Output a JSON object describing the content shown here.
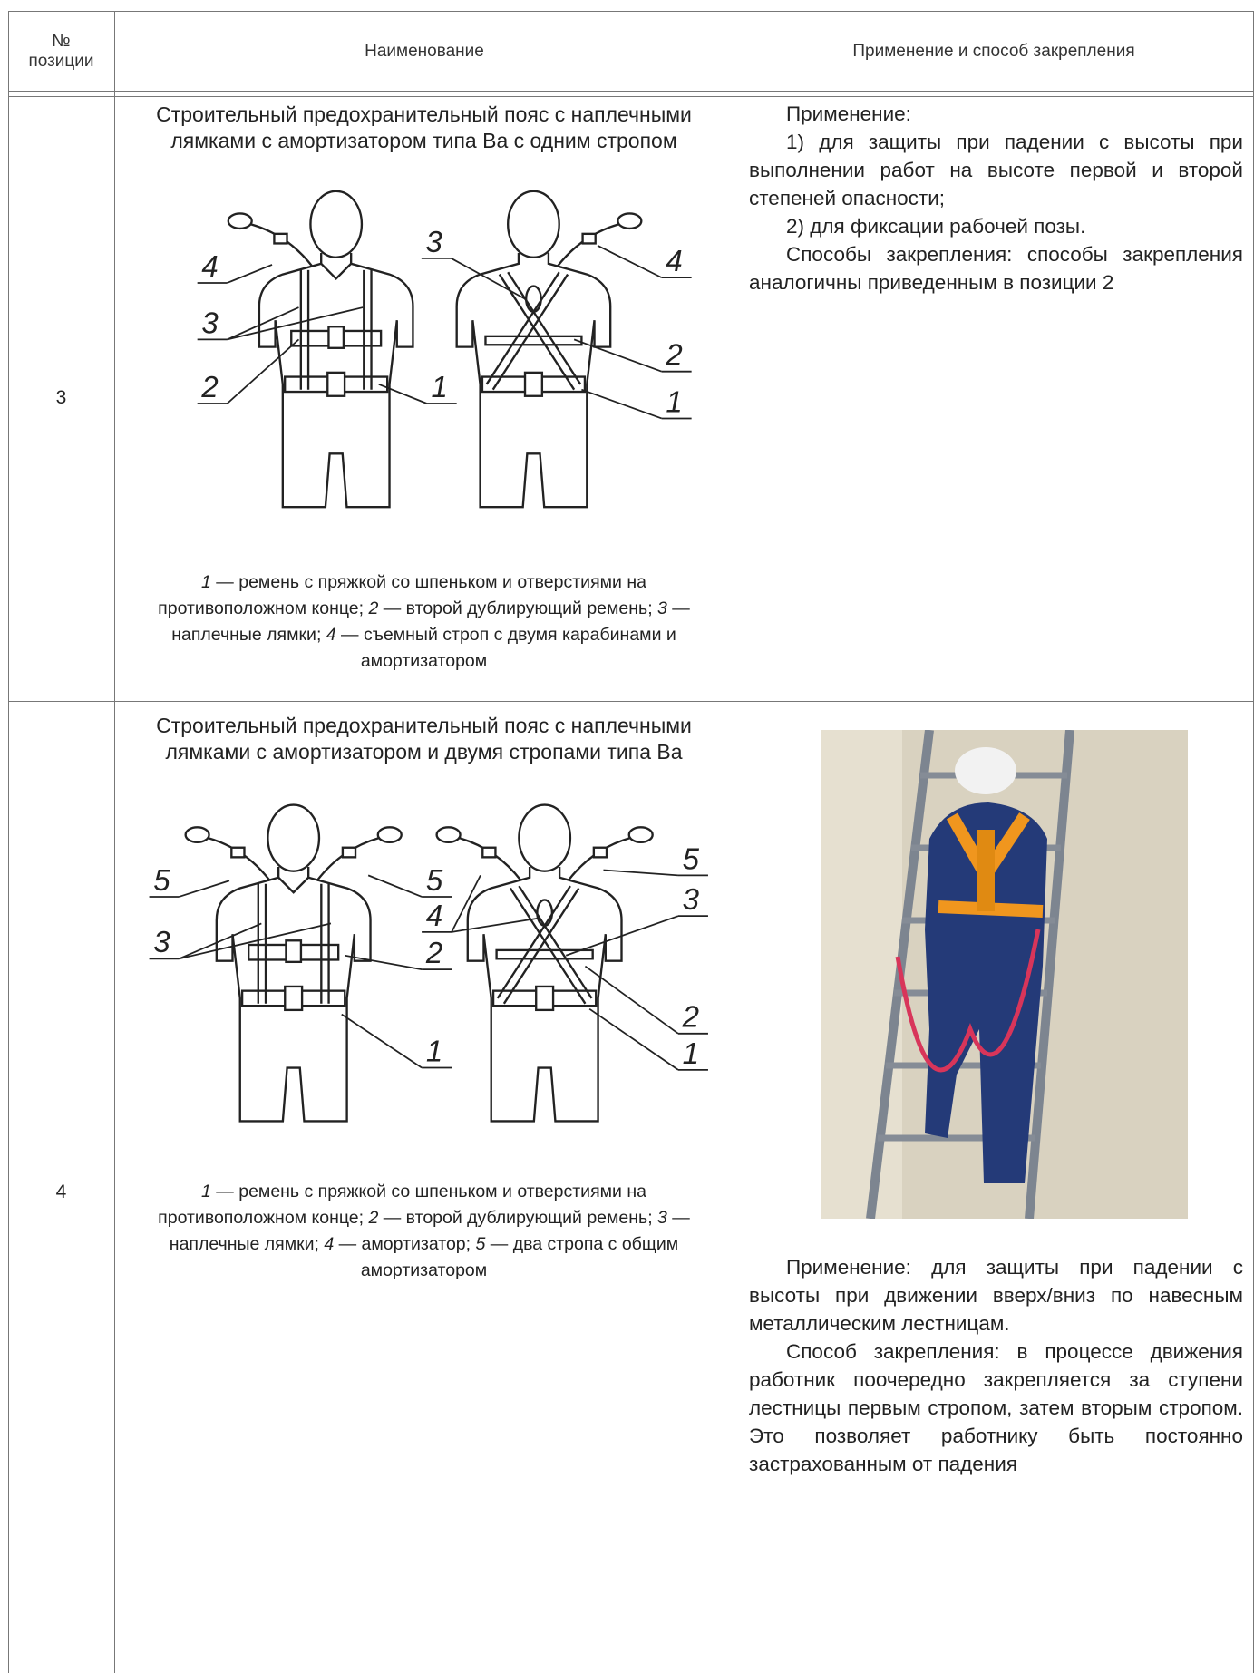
{
  "header": {
    "position": "№ позиции",
    "name": "Наименование",
    "application": "Применение и способ закрепления"
  },
  "rows": [
    {
      "position": "3",
      "title": "Строительный предохранительный пояс с наплечными лямками с амортизатором типа Ва с одним стропом",
      "figure": {
        "callouts": [
          "4",
          "3",
          "2",
          "1",
          "3",
          "4",
          "2",
          "1"
        ]
      },
      "caption": [
        {
          "num": "1",
          "text": " — ремень с пряжкой со шпеньком и отверстиями на противоположном конце; "
        },
        {
          "num": "2",
          "text": " — второй дублирующий ремень; "
        },
        {
          "num": "3",
          "text": " — наплечные лямки; "
        },
        {
          "num": "4",
          "text": " — съемный строп с двумя карабинами и амортизатором"
        }
      ],
      "application": [
        "Применение:",
        "1) для защиты при падении с высоты при выполнении работ на высоте первой и второй степеней опасности;",
        "2) для фиксации рабочей позы.",
        "Способы закрепления: способы закрепления аналогичны приведенным в позиции 2"
      ]
    },
    {
      "position": "4",
      "title": "Строительный предохранительный пояс с наплечными лямками с амортизатором и двумя стропами типа Ва",
      "figure": {
        "callouts": [
          "5",
          "3",
          "5",
          "2",
          "1",
          "5",
          "4",
          "3",
          "2",
          "1"
        ]
      },
      "caption": [
        {
          "num": "1",
          "text": " — ремень с пряжкой со шпеньком и отверстиями на противоположном конце; "
        },
        {
          "num": "2",
          "text": " — второй дублирующий ремень; "
        },
        {
          "num": "3",
          "text": " — наплечные лямки; "
        },
        {
          "num": "4",
          "text": " — амортизатор; "
        },
        {
          "num": "5",
          "text": " — два стропа с общим амортизатором"
        }
      ],
      "application": [
        "Применение: для защиты при падении с высоты при движении вверх/вниз по навесным металлическим лестницам.",
        "Способ закрепления: в процессе движения работник поочередно закрепляется за ступени лестницы первым стропом, затем вторым стропом. Это позволяет работнику быть постоянно застрахованным от падения"
      ]
    }
  ]
}
